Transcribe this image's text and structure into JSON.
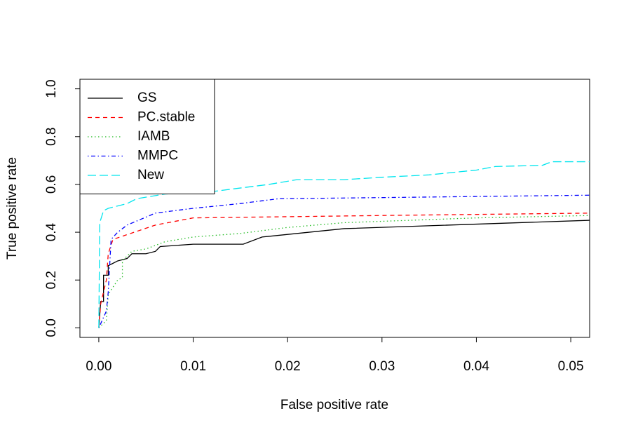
{
  "chart_data": {
    "type": "line",
    "xlabel": "False positive rate",
    "ylabel": "True positive rate",
    "xlim": [
      -0.002,
      0.052
    ],
    "ylim": [
      -0.04,
      1.04
    ],
    "xticks": [
      {
        "value": 0,
        "label": "0.00"
      },
      {
        "value": 0.01,
        "label": "0.01"
      },
      {
        "value": 0.02,
        "label": "0.02"
      },
      {
        "value": 0.03,
        "label": "0.03"
      },
      {
        "value": 0.04,
        "label": "0.04"
      },
      {
        "value": 0.05,
        "label": "0.05"
      }
    ],
    "yticks": [
      {
        "value": 0,
        "label": "0.0"
      },
      {
        "value": 0.2,
        "label": "0.2"
      },
      {
        "value": 0.4,
        "label": "0.4"
      },
      {
        "value": 0.6,
        "label": "0.6"
      },
      {
        "value": 0.8,
        "label": "0.8"
      },
      {
        "value": 1,
        "label": "1.0"
      }
    ],
    "legend": "topleft",
    "series": [
      {
        "name": "GS",
        "color": "#000000",
        "dash": "solid",
        "x": [
          0,
          0.0002,
          0.0005,
          0.0005,
          0.001,
          0.001,
          0.0015,
          0.002,
          0.003,
          0.0035,
          0.005,
          0.006,
          0.0065,
          0.01,
          0.0153,
          0.0173,
          0.026,
          0.052
        ],
        "values": [
          0,
          0.11,
          0.11,
          0.22,
          0.22,
          0.26,
          0.27,
          0.28,
          0.29,
          0.31,
          0.31,
          0.32,
          0.34,
          0.35,
          0.35,
          0.38,
          0.415,
          0.45
        ]
      },
      {
        "name": "PC.stable",
        "color": "#ff0000",
        "dash": "dashed",
        "x": [
          0,
          0.0002,
          0.0008,
          0.001,
          0.0015,
          0.003,
          0.006,
          0.01,
          0.02,
          0.03,
          0.052
        ],
        "values": [
          0,
          0.1,
          0.2,
          0.31,
          0.37,
          0.39,
          0.43,
          0.46,
          0.465,
          0.47,
          0.48
        ]
      },
      {
        "name": "IAMB",
        "color": "#22bb22",
        "dash": "dotted",
        "x": [
          0,
          0.0008,
          0.001,
          0.002,
          0.0025,
          0.0025,
          0.0035,
          0.005,
          0.007,
          0.01,
          0.015,
          0.02,
          0.026,
          0.04,
          0.052
        ],
        "values": [
          0,
          0.03,
          0.14,
          0.2,
          0.21,
          0.28,
          0.32,
          0.33,
          0.36,
          0.38,
          0.395,
          0.42,
          0.44,
          0.46,
          0.47
        ]
      },
      {
        "name": "MMPC",
        "color": "#0000ff",
        "dash": "dotdash",
        "x": [
          0,
          0.0008,
          0.001,
          0.0013,
          0.002,
          0.003,
          0.006,
          0.01,
          0.015,
          0.019,
          0.03,
          0.052
        ],
        "values": [
          0,
          0.07,
          0.15,
          0.37,
          0.4,
          0.43,
          0.48,
          0.5,
          0.52,
          0.54,
          0.545,
          0.555
        ]
      },
      {
        "name": "New",
        "color": "#00e5ee",
        "dash": "longdash",
        "x": [
          0,
          0.0001,
          0.0005,
          0.001,
          0.002,
          0.003,
          0.004,
          0.007,
          0.012,
          0.016,
          0.018,
          0.021,
          0.026,
          0.03,
          0.035,
          0.04,
          0.042,
          0.047,
          0.048,
          0.052
        ],
        "values": [
          0,
          0.44,
          0.49,
          0.5,
          0.51,
          0.52,
          0.54,
          0.56,
          0.57,
          0.59,
          0.6,
          0.62,
          0.62,
          0.63,
          0.64,
          0.66,
          0.675,
          0.68,
          0.695,
          0.695
        ]
      }
    ]
  }
}
